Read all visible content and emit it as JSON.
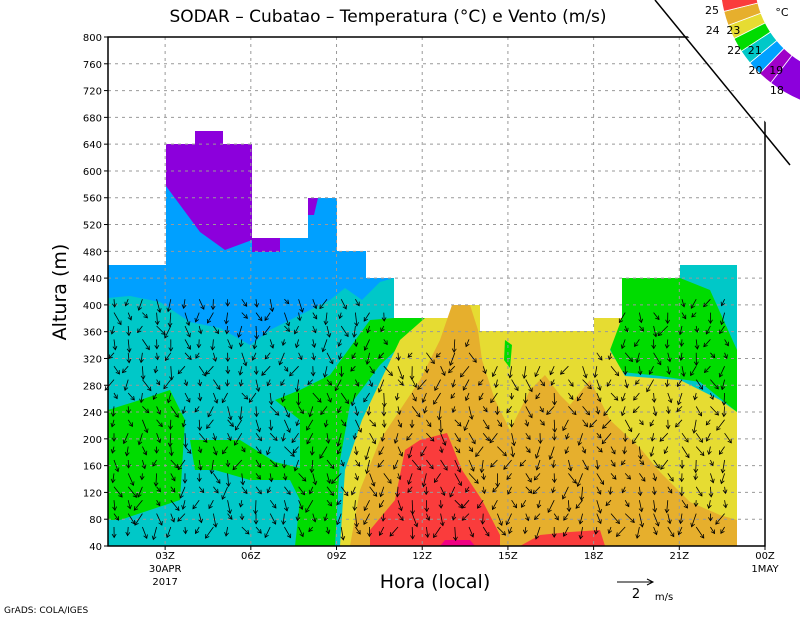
{
  "chart_data": {
    "type": "heatmap",
    "subtype": "filled-contour-with-wind-vectors",
    "title": "SODAR – Cubatao – Temperatura (°C) e Vento (m/s)",
    "xlabel": "Hora (local)",
    "ylabel": "Altura (m)",
    "x_ticks": [
      {
        "label": "03Z",
        "sub": [
          "30APR",
          "2017"
        ]
      },
      {
        "label": "06Z",
        "sub": []
      },
      {
        "label": "09Z",
        "sub": []
      },
      {
        "label": "12Z",
        "sub": []
      },
      {
        "label": "15Z",
        "sub": []
      },
      {
        "label": "18Z",
        "sub": []
      },
      {
        "label": "21Z",
        "sub": []
      },
      {
        "label": "00Z",
        "sub": [
          "1MAY"
        ]
      }
    ],
    "x_tick_hours": [
      3,
      6,
      9,
      12,
      15,
      18,
      21,
      24
    ],
    "xlim_hours": [
      1,
      24
    ],
    "ylim": [
      40,
      800
    ],
    "y_ticks": [
      "40",
      "80",
      "120",
      "160",
      "200",
      "240",
      "280",
      "320",
      "360",
      "400",
      "440",
      "480",
      "520",
      "560",
      "600",
      "640",
      "680",
      "720",
      "760",
      "800"
    ],
    "grid": true,
    "colorbar": {
      "unit": "°C",
      "labels": [
        "18",
        "19",
        "20",
        "21",
        "22",
        "23",
        "24",
        "25"
      ],
      "colors": [
        "#8c00dc",
        "#a000c8",
        "#00a0ff",
        "#00c8c8",
        "#00dc00",
        "#e6dc32",
        "#e6af2d",
        "#fa3c3c",
        "#f00082"
      ],
      "placement": "top-right"
    },
    "vector_reference": {
      "value": "2",
      "unit": "m/s"
    }
  },
  "footer": {
    "credit": "GrADS: COLA/IGES"
  }
}
